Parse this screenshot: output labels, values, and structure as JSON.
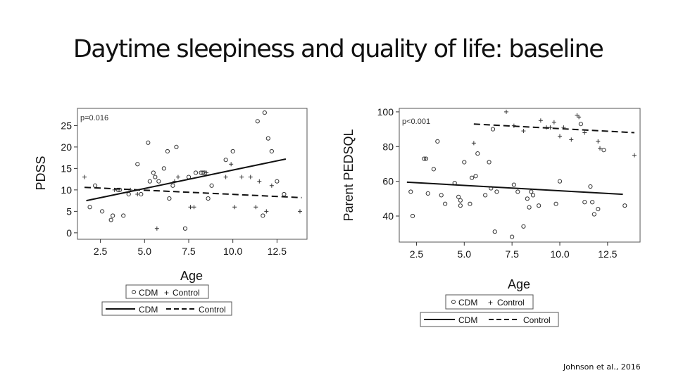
{
  "slide": {
    "title": "Daytime sleepiness and quality of life: baseline",
    "citation": "Johnson et al., 2016"
  },
  "legend": {
    "points_cdm": "CDM",
    "points_control": "Control",
    "lines_cdm": "CDM",
    "lines_control": "Control"
  },
  "chart_data": [
    {
      "type": "scatter",
      "annotation": "p=0.016",
      "xlabel": "Age",
      "ylabel": "PDSS",
      "xlim": [
        1.2,
        14.2
      ],
      "ylim": [
        -1.5,
        29
      ],
      "xticks": [
        "2.5",
        "5.0",
        "7.5",
        "10.0",
        "12.5"
      ],
      "yticks": [
        "0",
        "5",
        "10",
        "15",
        "20",
        "25"
      ],
      "series": [
        {
          "name": "CDM",
          "marker": "circle",
          "x": [
            1.9,
            2.2,
            2.6,
            3.1,
            3.2,
            3.5,
            3.8,
            4.1,
            3.6,
            4.6,
            4.8,
            5.2,
            5.3,
            5.5,
            5.6,
            5.8,
            6.1,
            6.3,
            6.4,
            6.6,
            6.8,
            7.3,
            7.5,
            7.9,
            8.2,
            8.3,
            8.4,
            8.6,
            8.8,
            9.6,
            10.0,
            11.4,
            11.7,
            11.8,
            12.0,
            12.2,
            12.5,
            12.9
          ],
          "y": [
            6,
            11,
            5,
            3,
            4,
            10,
            4,
            9,
            10,
            16,
            9,
            21,
            12,
            14,
            13,
            12,
            15,
            19,
            8,
            11,
            20,
            1,
            13,
            14,
            14,
            14,
            14,
            8,
            11,
            17,
            19,
            26,
            4,
            28,
            22,
            19,
            12,
            9
          ]
        },
        {
          "name": "Control",
          "marker": "plus",
          "x": [
            1.6,
            3.3,
            4.2,
            4.6,
            5.7,
            6.7,
            6.9,
            7.6,
            7.8,
            8.5,
            9.6,
            9.9,
            10.1,
            10.5,
            11.0,
            11.3,
            11.5,
            11.9,
            12.2,
            13.8
          ],
          "y": [
            13,
            10,
            10,
            9,
            1,
            12,
            13,
            6,
            6,
            14,
            13,
            16,
            6,
            13,
            13,
            6,
            12,
            5,
            11,
            5
          ]
        },
        {
          "name": "CDM",
          "style": "solid",
          "x": [
            1.7,
            13.0
          ],
          "y": [
            7.5,
            17.2
          ]
        },
        {
          "name": "Control",
          "style": "dashed",
          "x": [
            1.6,
            13.9
          ],
          "y": [
            10.6,
            8.2
          ]
        }
      ]
    },
    {
      "type": "scatter",
      "annotation": "p<0.001",
      "xlabel": "Age",
      "ylabel": "Parent PEDSQL",
      "xlim": [
        1.6,
        14.2
      ],
      "ylim": [
        25,
        102
      ],
      "xticks": [
        "2.5",
        "5.0",
        "7.5",
        "10.0",
        "12.5"
      ],
      "yticks": [
        "40",
        "60",
        "80",
        "100"
      ],
      "series": [
        {
          "name": "CDM",
          "marker": "circle",
          "x": [
            2.2,
            2.3,
            2.9,
            3.0,
            3.1,
            3.4,
            3.6,
            3.8,
            4.0,
            4.5,
            4.7,
            4.8,
            4.8,
            5.0,
            5.3,
            5.4,
            5.6,
            5.7,
            6.1,
            6.3,
            6.4,
            6.5,
            6.6,
            6.7,
            7.5,
            7.6,
            7.8,
            8.1,
            8.3,
            8.4,
            8.5,
            8.6,
            8.9,
            9.8,
            10.0,
            11.1,
            11.3,
            11.6,
            11.7,
            11.8,
            12.0,
            12.3,
            13.4
          ],
          "y": [
            54,
            40,
            73,
            73,
            53,
            67,
            83,
            52,
            47,
            59,
            51,
            46,
            49,
            71,
            47,
            62,
            63,
            76,
            52,
            71,
            56,
            90,
            31,
            54,
            28,
            58,
            54,
            34,
            50,
            45,
            54,
            52,
            46,
            47,
            60,
            93,
            48,
            57,
            48,
            41,
            44,
            78,
            46
          ]
        },
        {
          "name": "Control",
          "marker": "plus",
          "x": [
            5.5,
            7.2,
            7.6,
            8.1,
            9.0,
            9.3,
            9.5,
            9.7,
            10.0,
            10.2,
            10.6,
            10.9,
            11.0,
            11.3,
            12.0,
            12.1,
            13.9
          ],
          "y": [
            82,
            100,
            92,
            89,
            95,
            91,
            91,
            94,
            86,
            91,
            84,
            98,
            97,
            88,
            83,
            79,
            75
          ]
        },
        {
          "name": "CDM",
          "style": "solid",
          "x": [
            2.0,
            13.3
          ],
          "y": [
            59.5,
            52.5
          ]
        },
        {
          "name": "Control",
          "style": "dashed",
          "x": [
            5.5,
            13.9
          ],
          "y": [
            93,
            88
          ]
        }
      ]
    }
  ]
}
